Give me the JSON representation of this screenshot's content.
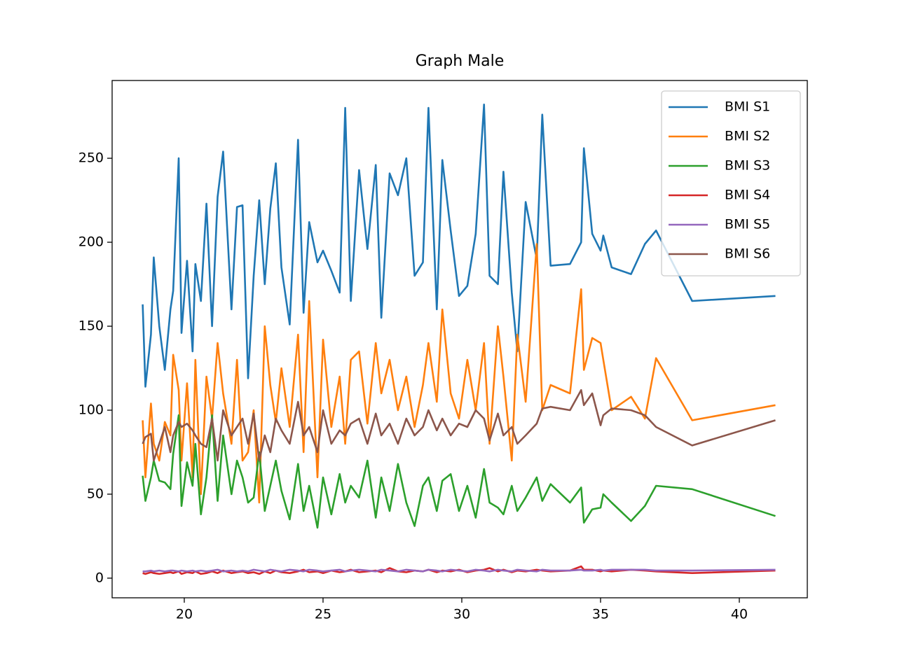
{
  "chart_data": {
    "type": "line",
    "title": "Graph Male",
    "x": [
      18.5,
      18.6,
      18.8,
      18.9,
      19.1,
      19.3,
      19.5,
      19.6,
      19.8,
      19.9,
      20.1,
      20.3,
      20.4,
      20.6,
      20.8,
      21.0,
      21.2,
      21.4,
      21.7,
      21.9,
      22.1,
      22.3,
      22.5,
      22.7,
      22.9,
      23.1,
      23.3,
      23.5,
      23.8,
      24.1,
      24.3,
      24.5,
      24.8,
      25.0,
      25.3,
      25.6,
      25.8,
      26.0,
      26.3,
      26.6,
      26.9,
      27.1,
      27.4,
      27.7,
      28.0,
      28.3,
      28.6,
      28.8,
      29.1,
      29.3,
      29.6,
      29.9,
      30.2,
      30.5,
      30.8,
      31.0,
      31.3,
      31.5,
      31.8,
      32.0,
      32.3,
      32.7,
      32.9,
      33.2,
      33.9,
      34.3,
      34.4,
      34.7,
      35.0,
      35.1,
      35.4,
      36.1,
      36.6,
      37.0,
      38.3,
      41.3
    ],
    "series": [
      {
        "name": "BMI S1",
        "color": "#1f77b4",
        "values": [
          163,
          114,
          145,
          191,
          150,
          124,
          160,
          171,
          250,
          146,
          189,
          135,
          187,
          165,
          223,
          150,
          227,
          254,
          160,
          221,
          222,
          119,
          180,
          225,
          175,
          220,
          247,
          185,
          151,
          261,
          158,
          212,
          188,
          195,
          183,
          170,
          280,
          165,
          243,
          196,
          246,
          155,
          241,
          228,
          250,
          180,
          188,
          280,
          160,
          249,
          207,
          168,
          174,
          205,
          282,
          180,
          175,
          242,
          170,
          135,
          224,
          190,
          276,
          186,
          187,
          200,
          256,
          205,
          195,
          204,
          185,
          181,
          199,
          207,
          165,
          168
        ]
      },
      {
        "name": "BMI S2",
        "color": "#ff7f0e",
        "values": [
          94,
          60,
          104,
          80,
          70,
          93,
          85,
          133,
          112,
          70,
          116,
          60,
          130,
          50,
          120,
          95,
          140,
          110,
          80,
          130,
          70,
          75,
          100,
          45,
          150,
          115,
          93,
          125,
          90,
          145,
          75,
          165,
          60,
          142,
          90,
          120,
          80,
          130,
          135,
          92,
          140,
          110,
          130,
          100,
          120,
          90,
          115,
          140,
          105,
          160,
          110,
          95,
          130,
          100,
          140,
          80,
          150,
          120,
          70,
          145,
          105,
          199,
          100,
          115,
          110,
          172,
          124,
          143,
          140,
          130,
          100,
          108,
          95,
          131,
          94,
          103
        ]
      },
      {
        "name": "BMI S3",
        "color": "#2ca02c",
        "values": [
          61,
          46,
          60,
          70,
          58,
          57,
          53,
          74,
          97,
          43,
          69,
          55,
          80,
          38,
          60,
          97,
          46,
          85,
          50,
          70,
          60,
          45,
          48,
          75,
          40,
          55,
          70,
          52,
          35,
          68,
          40,
          55,
          30,
          60,
          38,
          62,
          45,
          55,
          48,
          70,
          36,
          60,
          40,
          68,
          45,
          31,
          55,
          60,
          40,
          58,
          62,
          40,
          55,
          36,
          65,
          45,
          42,
          38,
          55,
          40,
          48,
          60,
          46,
          56,
          45,
          54,
          33,
          41,
          42,
          50,
          45,
          34,
          43,
          55,
          53,
          37
        ]
      },
      {
        "name": "BMI S4",
        "color": "#d62728",
        "values": [
          3,
          2.5,
          3.5,
          3,
          2.5,
          3,
          3.5,
          3,
          4,
          2.5,
          3.5,
          3,
          4,
          2.5,
          3,
          4,
          3,
          4.5,
          3,
          3.5,
          4,
          3,
          3.5,
          2.5,
          4,
          3,
          4.5,
          3.5,
          3,
          4,
          5,
          3.5,
          4,
          3,
          4.5,
          3.5,
          4,
          5,
          3.5,
          4,
          4.5,
          3.5,
          6,
          4,
          3.5,
          4.5,
          4,
          5,
          3.5,
          4.5,
          4,
          5,
          3.5,
          4.5,
          5,
          6,
          4,
          5,
          3.5,
          4.5,
          4,
          5,
          4.5,
          4,
          4.5,
          7,
          5,
          5,
          4,
          4.5,
          4,
          5,
          4.5,
          4,
          3,
          4.5
        ]
      },
      {
        "name": "BMI S5",
        "color": "#9467bd",
        "values": [
          4,
          4,
          4.5,
          4,
          4.5,
          4,
          4.5,
          4.5,
          4,
          4.5,
          4,
          4.5,
          4,
          4.5,
          4,
          4.5,
          5,
          4,
          4.5,
          4,
          4.5,
          4,
          5,
          4.5,
          4,
          5,
          4.5,
          4,
          5,
          4.5,
          4,
          5,
          4.5,
          4,
          4.5,
          5,
          4,
          4.5,
          5,
          4.5,
          4,
          5,
          4.5,
          4,
          5,
          4.5,
          4,
          5,
          4.5,
          4,
          5,
          4.5,
          4,
          5,
          4.5,
          4,
          5,
          4.5,
          4,
          5,
          4.5,
          4,
          5,
          4.5,
          4.5,
          5,
          4.5,
          4.5,
          5,
          4.5,
          5,
          5,
          5,
          4.5,
          4.5,
          5
        ]
      },
      {
        "name": "BMI S6",
        "color": "#8c564b",
        "values": [
          80,
          84,
          86,
          70,
          80,
          90,
          75,
          85,
          93,
          90,
          92,
          88,
          85,
          80,
          78,
          95,
          70,
          100,
          85,
          90,
          95,
          80,
          98,
          70,
          85,
          75,
          95,
          88,
          80,
          105,
          85,
          90,
          75,
          100,
          80,
          88,
          85,
          92,
          95,
          80,
          98,
          85,
          92,
          80,
          95,
          85,
          90,
          100,
          88,
          95,
          85,
          92,
          90,
          100,
          95,
          82,
          98,
          85,
          90,
          80,
          85,
          92,
          101,
          102,
          100,
          112,
          103,
          110,
          91,
          97,
          101,
          100,
          97,
          90,
          79,
          94
        ]
      }
    ],
    "xlim": [
      17.4,
      42.45
    ],
    "ylim": [
      -11.7,
      296.3
    ],
    "xticks": [
      20,
      25,
      30,
      35,
      40
    ],
    "yticks": [
      0,
      50,
      100,
      150,
      200,
      250
    ],
    "legend": "upper right",
    "grid": false
  }
}
